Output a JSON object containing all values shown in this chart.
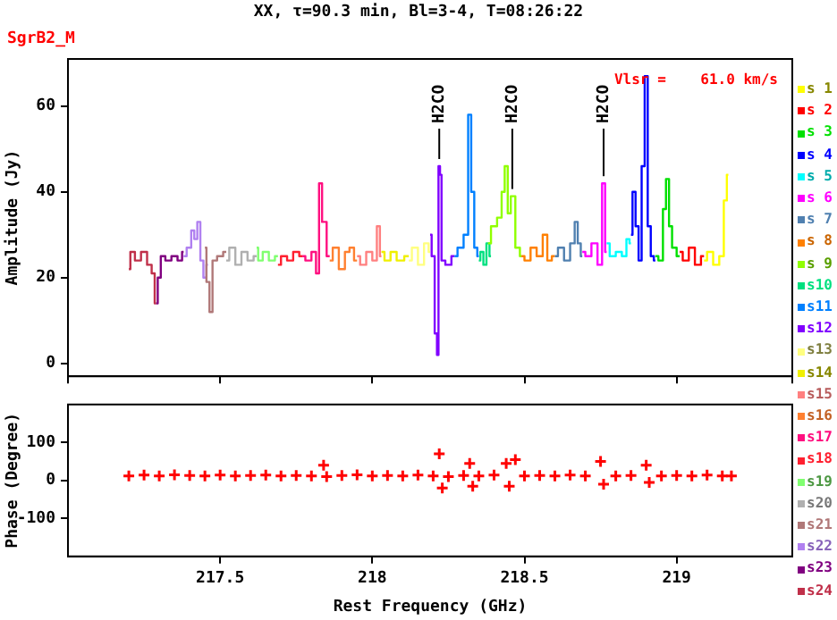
{
  "chart_data": [
    {
      "type": "step",
      "title": "XX, τ=90.3 min, Bl=3-4, T=08:26:22",
      "subtitle": "SgrB2_M",
      "ylabel": "Amplitude (Jy)",
      "xlim": [
        217.0,
        219.38
      ],
      "ylim": [
        -3,
        71
      ],
      "yticks": [
        0,
        20,
        40,
        60
      ],
      "tick_labels": "y",
      "legend": "right",
      "grid": false,
      "annotations": [
        {
          "text": "H2CO",
          "x": 218.22,
          "y": 46
        },
        {
          "text": "H2CO",
          "x": 218.46,
          "y": 39
        },
        {
          "text": "H2CO",
          "x": 218.76,
          "y": 42
        },
        "Vlsr =    61.0 km/s"
      ],
      "series": [
        {
          "name": "s 1",
          "color": "#ffff00",
          "x": [
            219.09,
            219.11,
            219.13,
            219.15,
            219.16,
            219.17
          ],
          "values": [
            24,
            26,
            23,
            25,
            38,
            44
          ]
        },
        {
          "name": "s 2",
          "color": "#ff0000",
          "x": [
            219.01,
            219.03,
            219.05,
            219.07,
            219.09
          ],
          "values": [
            26,
            24,
            27,
            23,
            25
          ]
        },
        {
          "name": "s 3",
          "color": "#00e000",
          "x": [
            218.93,
            218.95,
            218.96,
            218.97,
            218.98,
            218.99,
            219.01
          ],
          "values": [
            25,
            24,
            36,
            43,
            32,
            27,
            25
          ]
        },
        {
          "name": "s 4",
          "color": "#0000ff",
          "x": [
            218.85,
            218.86,
            218.87,
            218.88,
            218.89,
            218.9,
            218.91,
            218.92,
            218.93
          ],
          "values": [
            30,
            40,
            32,
            24,
            46,
            67,
            32,
            25,
            24
          ]
        },
        {
          "name": "s 5",
          "color": "#00ffff",
          "x": [
            218.77,
            218.79,
            218.81,
            218.83,
            218.84,
            218.85
          ],
          "values": [
            28,
            25,
            26,
            25,
            29,
            28
          ]
        },
        {
          "name": "s 6",
          "color": "#ff00ff",
          "x": [
            218.69,
            218.71,
            218.73,
            218.75,
            218.76,
            218.77
          ],
          "values": [
            26,
            25,
            28,
            23,
            42,
            26
          ]
        },
        {
          "name": "s 7",
          "color": "#5080b0",
          "x": [
            218.6,
            218.62,
            218.64,
            218.66,
            218.67,
            218.68,
            218.69
          ],
          "values": [
            25,
            27,
            24,
            28,
            33,
            28,
            25
          ]
        },
        {
          "name": "s 8",
          "color": "#ff8000",
          "x": [
            218.49,
            218.51,
            218.53,
            218.55,
            218.57,
            218.58,
            218.6
          ],
          "values": [
            25,
            24,
            27,
            25,
            30,
            24,
            25
          ]
        },
        {
          "name": "s 9",
          "color": "#90ff00",
          "x": [
            218.38,
            218.4,
            218.42,
            218.43,
            218.44,
            218.45,
            218.46,
            218.48,
            218.49
          ],
          "values": [
            28,
            32,
            34,
            40,
            46,
            35,
            39,
            27,
            25
          ]
        },
        {
          "name": "s10",
          "color": "#00e080",
          "x": [
            218.35,
            218.36,
            218.37,
            218.38,
            218.39
          ],
          "values": [
            24,
            26,
            23,
            28,
            25
          ]
        },
        {
          "name": "s11",
          "color": "#0080ff",
          "x": [
            218.27,
            218.29,
            218.31,
            218.32,
            218.33,
            218.34,
            218.35
          ],
          "values": [
            25,
            27,
            30,
            58,
            40,
            27,
            25
          ]
        },
        {
          "name": "s12",
          "color": "#8000ff",
          "x": [
            218.19,
            218.2,
            218.21,
            218.215,
            218.22,
            218.225,
            218.23,
            218.25,
            218.27
          ],
          "values": [
            30,
            25,
            7,
            2,
            46,
            44,
            24,
            23,
            25
          ]
        },
        {
          "name": "s13",
          "color": "#ffff80",
          "x": [
            218.12,
            218.14,
            218.16,
            218.18,
            218.19
          ],
          "values": [
            24,
            27,
            23,
            28,
            26
          ]
        },
        {
          "name": "s14",
          "color": "#f0f000",
          "x": [
            218.03,
            218.05,
            218.07,
            218.09,
            218.12
          ],
          "values": [
            26,
            24,
            26,
            24,
            25
          ]
        },
        {
          "name": "s15",
          "color": "#ff8080",
          "x": [
            217.95,
            217.97,
            217.99,
            218.01,
            218.02,
            218.03
          ],
          "values": [
            25,
            23,
            26,
            24,
            32,
            25
          ]
        },
        {
          "name": "s16",
          "color": "#ff8030",
          "x": [
            217.86,
            217.88,
            217.9,
            217.92,
            217.93,
            217.95
          ],
          "values": [
            24,
            27,
            22,
            26,
            27,
            24
          ]
        },
        {
          "name": "s17",
          "color": "#ff1080",
          "x": [
            217.77,
            217.79,
            217.81,
            217.82,
            217.83,
            217.84,
            217.86
          ],
          "values": [
            25,
            24,
            26,
            21,
            42,
            33,
            25
          ]
        },
        {
          "name": "s18",
          "color": "#ff2030",
          "x": [
            217.69,
            217.71,
            217.73,
            217.75,
            217.77
          ],
          "values": [
            23,
            25,
            24,
            26,
            25
          ]
        },
        {
          "name": "s19",
          "color": "#80ff70",
          "x": [
            217.62,
            217.63,
            217.65,
            217.67,
            217.69
          ],
          "values": [
            27,
            24,
            26,
            24,
            25
          ]
        },
        {
          "name": "s20",
          "color": "#b0b0b0",
          "x": [
            217.52,
            217.54,
            217.56,
            217.58,
            217.6,
            217.62
          ],
          "values": [
            24,
            27,
            23,
            26,
            24,
            25
          ]
        },
        {
          "name": "s21",
          "color": "#b07878",
          "x": [
            217.45,
            217.46,
            217.47,
            217.48,
            217.5,
            217.52
          ],
          "values": [
            27,
            19,
            12,
            24,
            25,
            26
          ]
        },
        {
          "name": "s22",
          "color": "#b080f0",
          "x": [
            217.38,
            217.4,
            217.41,
            217.42,
            217.43,
            217.44,
            217.45,
            217.46
          ],
          "values": [
            25,
            27,
            31,
            29,
            33,
            24,
            20,
            23
          ]
        },
        {
          "name": "s23",
          "color": "#800080",
          "x": [
            217.29,
            217.3,
            217.31,
            217.33,
            217.35,
            217.37,
            217.38
          ],
          "values": [
            14,
            20,
            25,
            24,
            25,
            24,
            26
          ]
        },
        {
          "name": "s24",
          "color": "#c0304a",
          "x": [
            217.2,
            217.21,
            217.23,
            217.25,
            217.27,
            217.28,
            217.29
          ],
          "values": [
            22,
            26,
            24,
            26,
            23,
            21,
            14
          ]
        }
      ]
    },
    {
      "type": "scatter",
      "xlabel": "Rest Frequency (GHz)",
      "ylabel": "Phase (Degree)",
      "xlim": [
        217.0,
        219.38
      ],
      "ylim": [
        -200,
        200
      ],
      "xticks": [
        217.5,
        218,
        218.5,
        219
      ],
      "yticks": [
        -100,
        0,
        100
      ],
      "grid": false,
      "marker": "cross",
      "series": [
        {
          "color": "#ff0000",
          "x": [
            217.2,
            217.25,
            217.3,
            217.35,
            217.4,
            217.45,
            217.5,
            217.55,
            217.6,
            217.65,
            217.7,
            217.75,
            217.8,
            217.84,
            217.85,
            217.9,
            217.95,
            218.0,
            218.05,
            218.1,
            218.15,
            218.2,
            218.22,
            218.23,
            218.25,
            218.3,
            218.32,
            218.33,
            218.35,
            218.4,
            218.44,
            218.45,
            218.47,
            218.5,
            218.55,
            218.6,
            218.65,
            218.7,
            218.75,
            218.76,
            218.8,
            218.85,
            218.9,
            218.91,
            218.95,
            219.0,
            219.05,
            219.1,
            219.15,
            219.18
          ],
          "values": [
            12,
            14,
            12,
            15,
            13,
            12,
            14,
            12,
            13,
            14,
            12,
            13,
            12,
            40,
            10,
            13,
            15,
            12,
            13,
            12,
            14,
            12,
            70,
            -20,
            10,
            13,
            45,
            -15,
            12,
            14,
            45,
            -15,
            55,
            12,
            13,
            12,
            14,
            12,
            50,
            -10,
            12,
            13,
            40,
            -5,
            12,
            13,
            12,
            14,
            12,
            12
          ]
        }
      ]
    }
  ]
}
